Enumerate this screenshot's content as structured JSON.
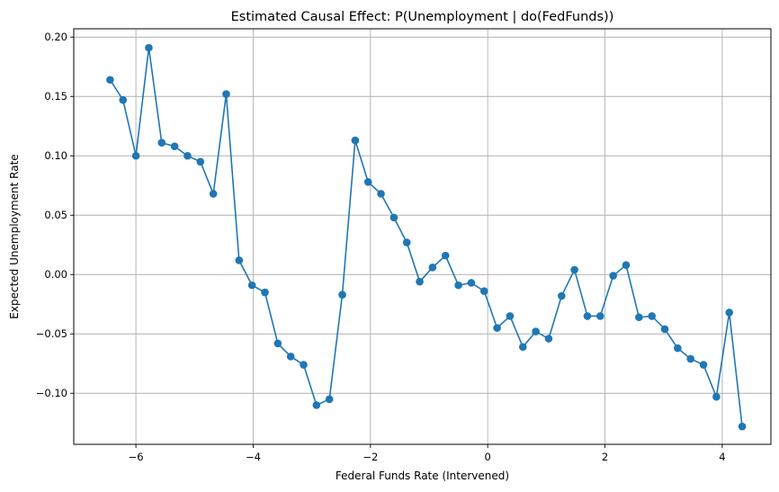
{
  "chart_data": {
    "type": "line",
    "title": "Estimated Causal Effect: P(Unemployment | do(FedFunds))",
    "xlabel": "Federal Funds Rate (Intervened)",
    "ylabel": "Expected Unemployment Rate",
    "xlim": [
      -7.06,
      4.83
    ],
    "ylim": [
      -0.143,
      0.207
    ],
    "xticks": [
      -6,
      -4,
      -2,
      0,
      2,
      4
    ],
    "xtick_labels": [
      "−6",
      "−4",
      "−2",
      "0",
      "2",
      "4"
    ],
    "yticks": [
      -0.1,
      -0.05,
      0.0,
      0.05,
      0.1,
      0.15,
      0.2
    ],
    "ytick_labels": [
      "−0.10",
      "−0.05",
      "0.00",
      "0.05",
      "0.10",
      "0.15",
      "0.20"
    ],
    "grid": true,
    "color": "#1f77b4",
    "marker": "circle",
    "x": [
      -6.44,
      -6.22,
      -6.0,
      -5.78,
      -5.56,
      -5.34,
      -5.12,
      -4.9,
      -4.68,
      -4.46,
      -4.24,
      -4.02,
      -3.8,
      -3.58,
      -3.36,
      -3.14,
      -2.92,
      -2.7,
      -2.48,
      -2.26,
      -2.04,
      -1.82,
      -1.6,
      -1.38,
      -1.16,
      -0.94,
      -0.72,
      -0.5,
      -0.28,
      -0.06,
      0.16,
      0.38,
      0.6,
      0.82,
      1.04,
      1.26,
      1.48,
      1.7,
      1.92,
      2.14,
      2.36,
      2.58,
      2.8,
      3.02,
      3.24,
      3.46,
      3.68,
      3.9,
      4.12,
      4.34
    ],
    "y": [
      0.164,
      0.147,
      0.1,
      0.191,
      0.111,
      0.108,
      0.1,
      0.095,
      0.068,
      0.152,
      0.012,
      -0.009,
      -0.015,
      -0.058,
      -0.069,
      -0.076,
      -0.11,
      -0.105,
      -0.017,
      0.113,
      0.078,
      0.068,
      0.048,
      0.027,
      -0.006,
      0.006,
      0.016,
      -0.009,
      -0.007,
      -0.014,
      -0.045,
      -0.035,
      -0.061,
      -0.048,
      -0.054,
      -0.018,
      0.004,
      -0.035,
      -0.035,
      -0.001,
      0.008,
      -0.036,
      -0.035,
      -0.046,
      -0.062,
      -0.071,
      -0.076,
      -0.103,
      -0.032,
      -0.128
    ]
  }
}
